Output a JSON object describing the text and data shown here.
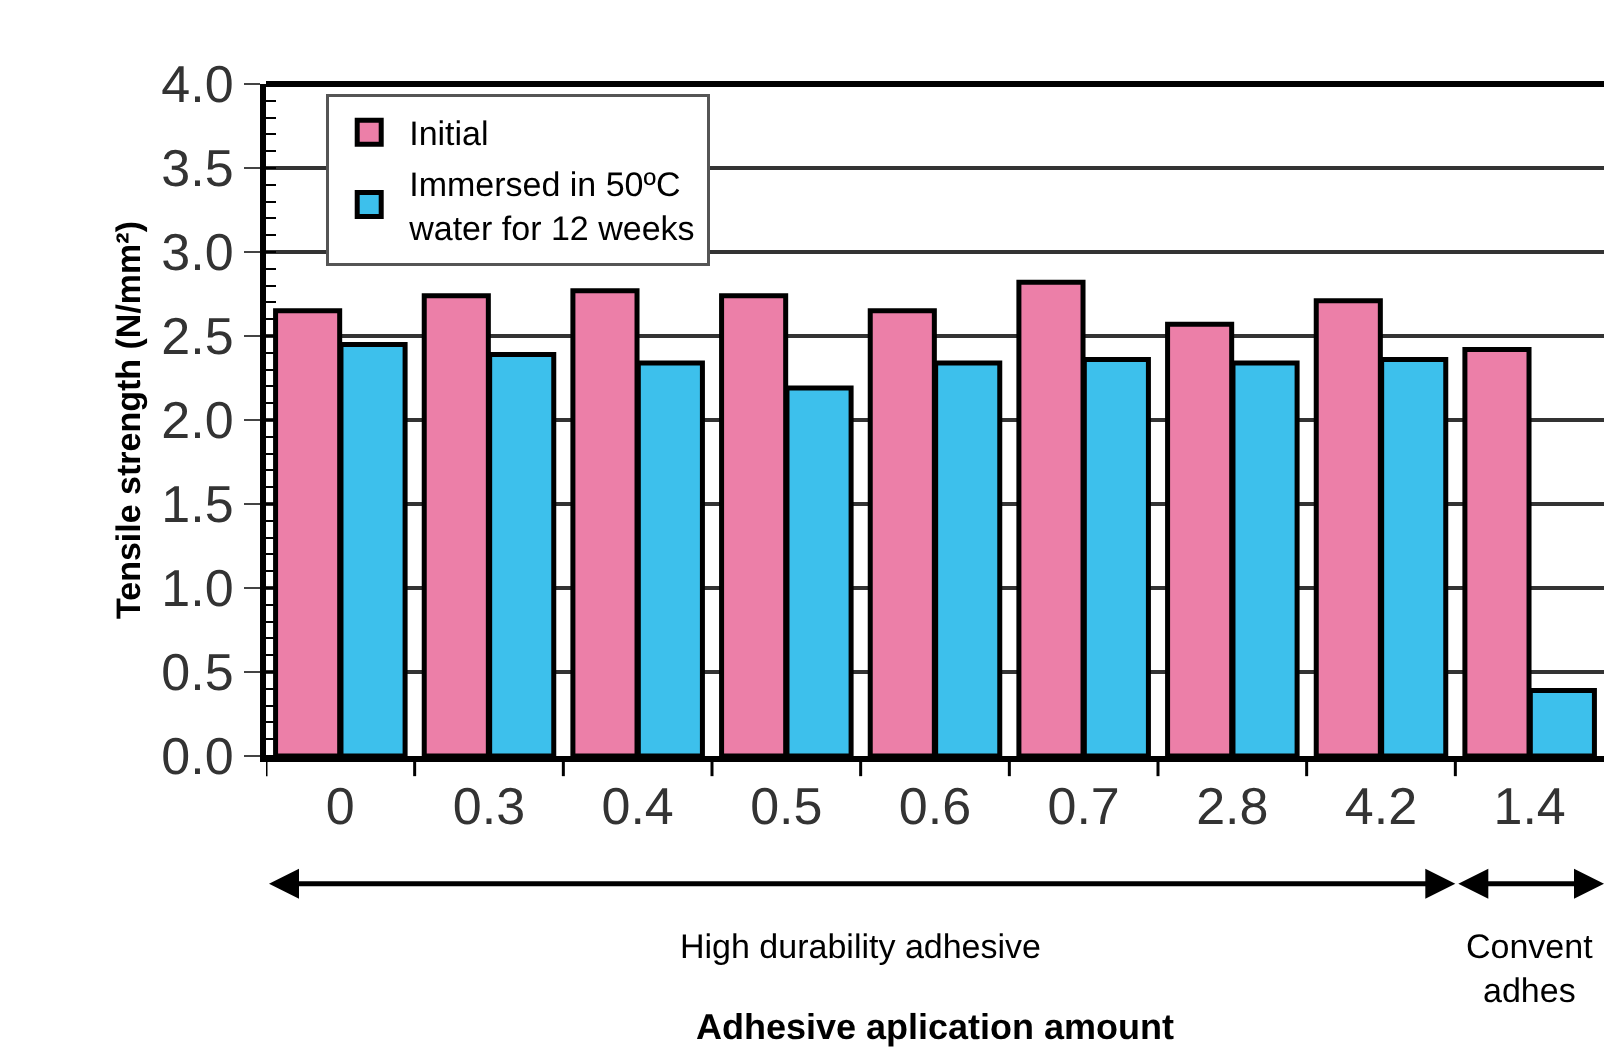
{
  "chart_data": {
    "type": "bar",
    "xlabel": "Adhesive aplication amount",
    "ylabel": "Tensile strength (N/mm²)",
    "categories": [
      "0",
      "0.3",
      "0.4",
      "0.5",
      "0.6",
      "0.7",
      "2.8",
      "4.2",
      "1.4"
    ],
    "series": [
      {
        "name": "Initial",
        "color": "#ec7fa8",
        "values": [
          2.65,
          2.74,
          2.77,
          2.74,
          2.65,
          2.82,
          2.57,
          2.71,
          2.42
        ]
      },
      {
        "name": "Immersed in 50ºC\nwater for 12 weeks",
        "color": "#3dc0ec",
        "values": [
          2.45,
          2.39,
          2.34,
          2.19,
          2.34,
          2.36,
          2.34,
          2.36,
          0.39
        ]
      }
    ],
    "ylim": [
      0,
      4.0
    ],
    "yticks": [
      {
        "value": 0,
        "label": "0.0"
      },
      0.5,
      {
        "value": 1,
        "label": "1.0"
      },
      1.5,
      {
        "value": 2,
        "label": "2.0"
      },
      2.5,
      {
        "value": 3,
        "label": "3.0"
      },
      3.5,
      {
        "value": 4,
        "label": "4.0"
      }
    ],
    "grid": "y",
    "legend": "top left",
    "annotations": [
      "High durability adhesive",
      "Convent\nadhes"
    ]
  }
}
